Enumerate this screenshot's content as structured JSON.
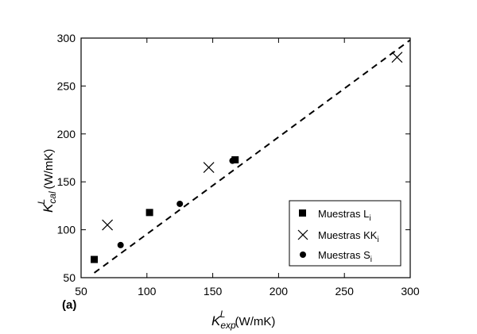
{
  "chart_data": {
    "type": "scatter",
    "panel_label": "(a)",
    "xlabel": {
      "symbol": "K",
      "sup": "L",
      "sub": "exp",
      "unit": " (W/mK)"
    },
    "ylabel": {
      "symbol": "K",
      "sup": "L",
      "sub": "cal",
      "unit": " (W/mK)"
    },
    "xlim": [
      50,
      300
    ],
    "ylim": [
      50,
      300
    ],
    "xticks": [
      50,
      100,
      150,
      200,
      250,
      300
    ],
    "yticks": [
      50,
      100,
      150,
      200,
      250,
      300
    ],
    "grid": false,
    "legend_position": "lower-right",
    "reference_line": {
      "style": "dashed",
      "from": [
        60,
        55
      ],
      "to": [
        300,
        298
      ]
    },
    "series": [
      {
        "name": "Muestras L",
        "name_sub": "i",
        "marker": "square",
        "x": [
          60,
          102,
          167
        ],
        "y": [
          69,
          118,
          173
        ]
      },
      {
        "name": "Muestras KK",
        "name_sub": "i",
        "marker": "x",
        "x": [
          70,
          147,
          290
        ],
        "y": [
          105,
          165,
          280
        ]
      },
      {
        "name": "Muestras S",
        "name_sub": "i",
        "marker": "circle",
        "x": [
          80,
          125,
          165
        ],
        "y": [
          84,
          127,
          172
        ]
      }
    ]
  }
}
